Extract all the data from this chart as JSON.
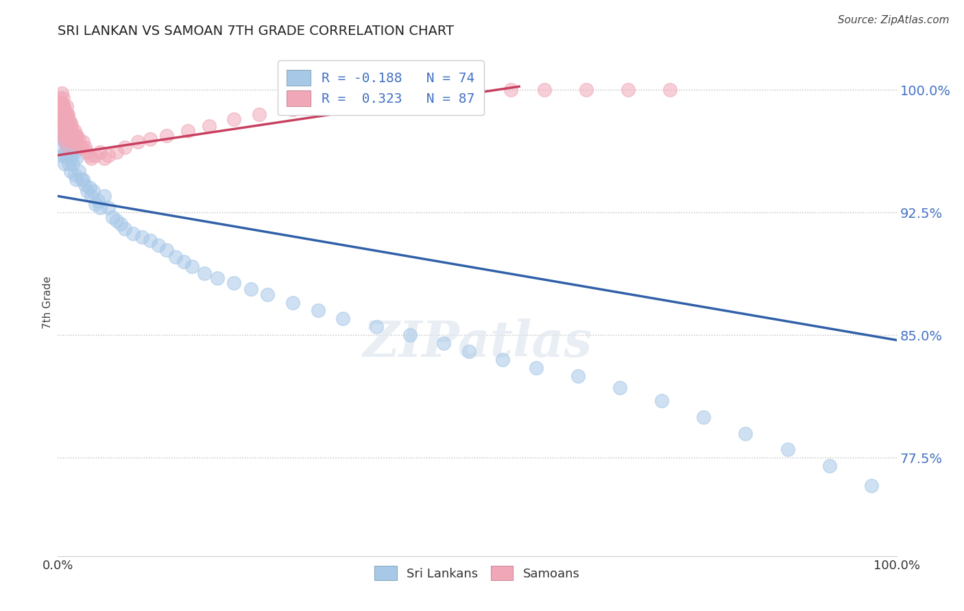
{
  "title": "SRI LANKAN VS SAMOAN 7TH GRADE CORRELATION CHART",
  "source": "Source: ZipAtlas.com",
  "ylabel": "7th Grade",
  "xlim": [
    0.0,
    1.0
  ],
  "ylim": [
    0.715,
    1.025
  ],
  "yticks": [
    0.775,
    0.85,
    0.925,
    1.0
  ],
  "ytick_labels": [
    "77.5%",
    "85.0%",
    "92.5%",
    "100.0%"
  ],
  "xticks": [
    0.0,
    1.0
  ],
  "xtick_labels": [
    "0.0%",
    "100.0%"
  ],
  "sri_lankan_color": "#A8C8E8",
  "samoan_color": "#F0A8B8",
  "sri_lankan_line_color": "#3060A8",
  "samoan_line_color": "#C84060",
  "R_sri": -0.188,
  "N_sri": 74,
  "R_sam": 0.323,
  "N_sam": 87,
  "legend_label_sri": "Sri Lankans",
  "legend_label_sam": "Samoans",
  "blue_line": [
    [
      0.0,
      0.935
    ],
    [
      1.0,
      0.847
    ]
  ],
  "pink_line": [
    [
      0.0,
      0.96
    ],
    [
      0.55,
      1.002
    ]
  ],
  "sri_x": [
    0.004,
    0.005,
    0.005,
    0.006,
    0.006,
    0.007,
    0.007,
    0.008,
    0.008,
    0.009,
    0.01,
    0.01,
    0.01,
    0.011,
    0.012,
    0.012,
    0.013,
    0.013,
    0.014,
    0.015,
    0.015,
    0.016,
    0.018,
    0.02,
    0.02,
    0.022,
    0.022,
    0.025,
    0.028,
    0.03,
    0.032,
    0.035,
    0.038,
    0.04,
    0.042,
    0.045,
    0.048,
    0.05,
    0.055,
    0.06,
    0.065,
    0.07,
    0.075,
    0.08,
    0.09,
    0.1,
    0.11,
    0.12,
    0.13,
    0.14,
    0.15,
    0.16,
    0.175,
    0.19,
    0.21,
    0.23,
    0.25,
    0.28,
    0.31,
    0.34,
    0.38,
    0.42,
    0.46,
    0.49,
    0.53,
    0.57,
    0.62,
    0.67,
    0.72,
    0.77,
    0.82,
    0.87,
    0.92,
    0.97
  ],
  "sri_y": [
    0.98,
    0.975,
    0.96,
    0.972,
    0.965,
    0.97,
    0.96,
    0.968,
    0.955,
    0.972,
    0.98,
    0.97,
    0.96,
    0.965,
    0.975,
    0.958,
    0.97,
    0.955,
    0.968,
    0.962,
    0.95,
    0.958,
    0.955,
    0.962,
    0.948,
    0.958,
    0.945,
    0.95,
    0.945,
    0.945,
    0.942,
    0.938,
    0.94,
    0.935,
    0.938,
    0.93,
    0.932,
    0.928,
    0.935,
    0.928,
    0.922,
    0.92,
    0.918,
    0.915,
    0.912,
    0.91,
    0.908,
    0.905,
    0.902,
    0.898,
    0.895,
    0.892,
    0.888,
    0.885,
    0.882,
    0.878,
    0.875,
    0.87,
    0.865,
    0.86,
    0.855,
    0.85,
    0.845,
    0.84,
    0.835,
    0.83,
    0.825,
    0.818,
    0.81,
    0.8,
    0.79,
    0.78,
    0.77,
    0.758
  ],
  "sam_x": [
    0.002,
    0.002,
    0.003,
    0.003,
    0.003,
    0.004,
    0.004,
    0.004,
    0.005,
    0.005,
    0.005,
    0.005,
    0.006,
    0.006,
    0.006,
    0.006,
    0.007,
    0.007,
    0.007,
    0.007,
    0.008,
    0.008,
    0.008,
    0.008,
    0.009,
    0.009,
    0.009,
    0.01,
    0.01,
    0.01,
    0.01,
    0.01,
    0.011,
    0.011,
    0.011,
    0.012,
    0.012,
    0.012,
    0.013,
    0.013,
    0.014,
    0.014,
    0.015,
    0.015,
    0.015,
    0.016,
    0.016,
    0.017,
    0.018,
    0.019,
    0.02,
    0.02,
    0.021,
    0.022,
    0.023,
    0.025,
    0.026,
    0.028,
    0.03,
    0.032,
    0.035,
    0.038,
    0.04,
    0.045,
    0.05,
    0.055,
    0.06,
    0.07,
    0.08,
    0.095,
    0.11,
    0.13,
    0.155,
    0.18,
    0.21,
    0.24,
    0.28,
    0.32,
    0.36,
    0.4,
    0.45,
    0.5,
    0.54,
    0.58,
    0.63,
    0.68,
    0.73
  ],
  "sam_y": [
    0.99,
    0.982,
    0.995,
    0.985,
    0.978,
    0.992,
    0.985,
    0.978,
    0.998,
    0.992,
    0.985,
    0.978,
    0.995,
    0.99,
    0.984,
    0.978,
    0.99,
    0.985,
    0.978,
    0.972,
    0.988,
    0.982,
    0.975,
    0.97,
    0.985,
    0.98,
    0.974,
    0.99,
    0.984,
    0.978,
    0.972,
    0.966,
    0.985,
    0.98,
    0.974,
    0.985,
    0.978,
    0.972,
    0.982,
    0.975,
    0.98,
    0.974,
    0.98,
    0.974,
    0.968,
    0.978,
    0.972,
    0.975,
    0.97,
    0.968,
    0.975,
    0.97,
    0.972,
    0.968,
    0.972,
    0.97,
    0.965,
    0.965,
    0.968,
    0.965,
    0.962,
    0.96,
    0.958,
    0.96,
    0.962,
    0.958,
    0.96,
    0.962,
    0.965,
    0.968,
    0.97,
    0.972,
    0.975,
    0.978,
    0.982,
    0.985,
    0.988,
    0.99,
    0.992,
    0.995,
    0.998,
    1.0,
    1.0,
    1.0,
    1.0,
    1.0,
    1.0
  ]
}
